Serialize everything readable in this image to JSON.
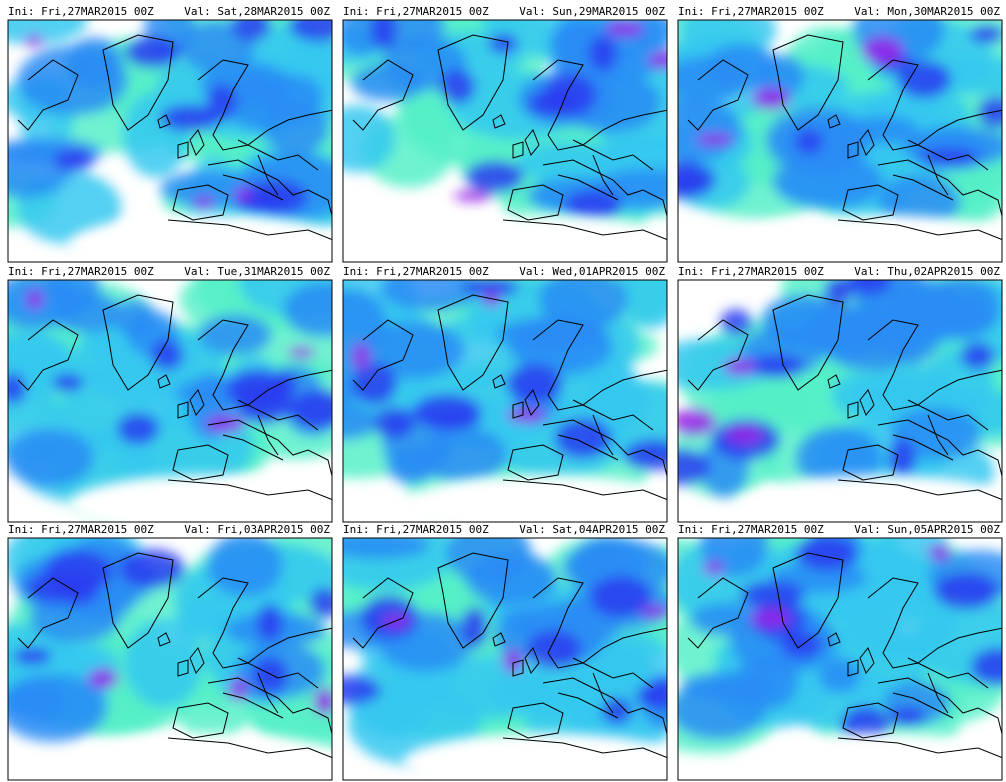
{
  "panels": [
    {
      "ini": "Ini: Fri,27MAR2015 00Z",
      "val": "Val: Sat,28MAR2015 00Z"
    },
    {
      "ini": "Ini: Fri,27MAR2015 00Z",
      "val": "Val: Sun,29MAR2015 00Z"
    },
    {
      "ini": "Ini: Fri,27MAR2015 00Z",
      "val": "Val: Mon,30MAR2015 00Z"
    },
    {
      "ini": "Ini: Fri,27MAR2015 00Z",
      "val": "Val: Tue,31MAR2015 00Z"
    },
    {
      "ini": "Ini: Fri,27MAR2015 00Z",
      "val": "Val: Wed,01APR2015 00Z"
    },
    {
      "ini": "Ini: Fri,27MAR2015 00Z",
      "val": "Val: Thu,02APR2015 00Z"
    },
    {
      "ini": "Ini: Fri,27MAR2015 00Z",
      "val": "Val: Fri,03APR2015 00Z"
    },
    {
      "ini": "Ini: Fri,27MAR2015 00Z",
      "val": "Val: Sat,04APR2015 00Z"
    },
    {
      "ini": "Ini: Fri,27MAR2015 00Z",
      "val": "Val: Sun,05APR2015 00Z"
    }
  ]
}
